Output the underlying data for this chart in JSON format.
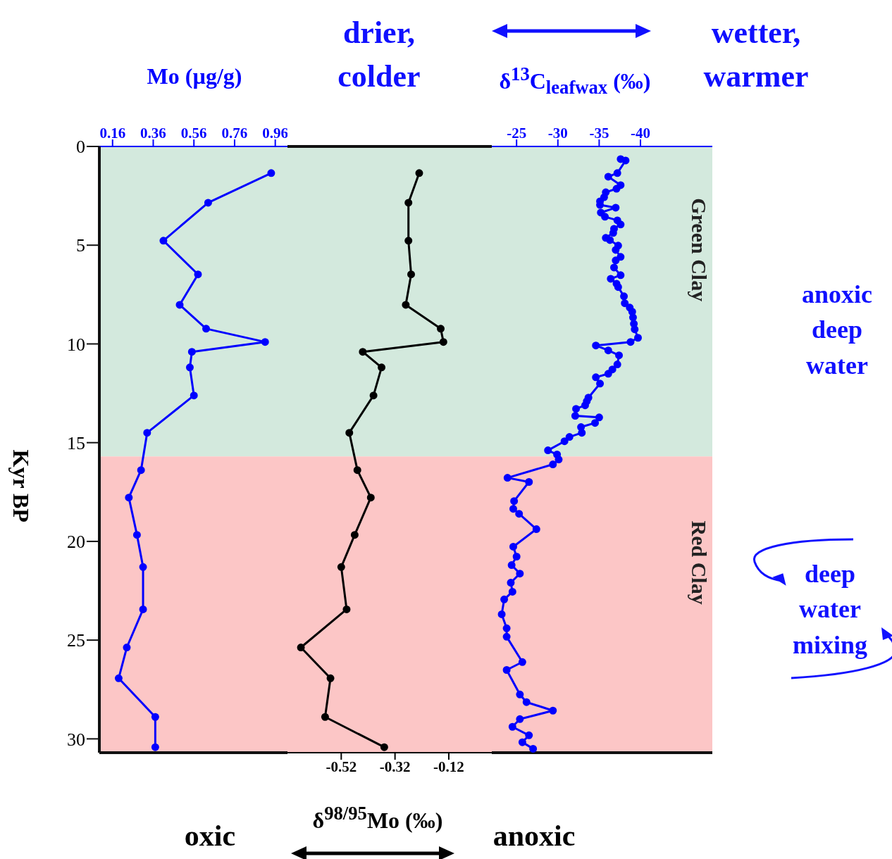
{
  "chart_data": [
    {
      "type": "line",
      "xlabel": "Mo (µg/g)",
      "ylabel": "Kyr BP",
      "xlim": [
        0.095,
        1.02
      ],
      "xticks": [
        0.16,
        0.36,
        0.56,
        0.76,
        0.96
      ],
      "ylim": [
        30.7,
        0
      ],
      "yticks": [
        0,
        5,
        10,
        15,
        20,
        25,
        30
      ],
      "marker": "circle",
      "line_style": "solid",
      "series": [
        {
          "color": "#0000ff",
          "x": [
            0.94,
            0.63,
            0.41,
            0.58,
            0.49,
            0.62,
            0.91,
            0.55,
            0.54,
            0.56,
            0.33,
            0.3,
            0.24,
            0.28,
            0.31,
            0.31,
            0.23,
            0.19,
            0.37,
            0.37
          ],
          "values": [
            1.35,
            2.85,
            4.77,
            6.48,
            8.02,
            9.23,
            9.9,
            10.4,
            11.19,
            12.61,
            14.5,
            16.39,
            17.78,
            19.67,
            21.3,
            23.44,
            25.37,
            26.93,
            28.89,
            30.42
          ]
        }
      ],
      "bands": [
        {
          "axis": "y",
          "from": 0,
          "to": 15.7,
          "color": "#d3e9dd"
        },
        {
          "axis": "y",
          "from": 15.7,
          "to": 30.7,
          "color": "#fcc6c6"
        }
      ]
    },
    {
      "type": "line",
      "xlabel": "δ$^{98/95}$Mo (‰)",
      "xlim": [
        -0.72,
        0.04
      ],
      "xticks": [
        -0.52,
        -0.32,
        -0.12
      ],
      "ylim": [
        30.7,
        0
      ],
      "tick_labels": "x",
      "marker": "circle",
      "line_style": "solid",
      "series": [
        {
          "color": "#000000",
          "x": [
            -0.23,
            -0.27,
            -0.27,
            -0.26,
            -0.28,
            -0.15,
            -0.14,
            -0.44,
            -0.37,
            -0.4,
            -0.49,
            -0.46,
            -0.41,
            -0.47,
            -0.52,
            -0.5,
            -0.67,
            -0.56,
            -0.58,
            -0.36
          ],
          "values": [
            1.35,
            2.85,
            4.77,
            6.48,
            8.02,
            9.23,
            9.9,
            10.4,
            11.19,
            12.61,
            14.5,
            16.39,
            17.78,
            19.67,
            21.3,
            23.44,
            25.37,
            26.93,
            28.89,
            30.42
          ]
        }
      ],
      "bands": [
        {
          "axis": "y",
          "from": 0,
          "to": 15.7,
          "color": "#d3e9dd"
        },
        {
          "axis": "y",
          "from": 15.7,
          "to": 30.7,
          "color": "#fcc6c6"
        }
      ],
      "annotations": [
        "oxic",
        "anoxic"
      ]
    },
    {
      "type": "line",
      "xlabel": "δ$^{13}$C$_{leafwax}$ (‰)",
      "xlim": [
        -22,
        -48.7
      ],
      "xticks": [
        -25,
        -30,
        -35,
        -40
      ],
      "ylim": [
        30.7,
        0
      ],
      "tick_labels": "x",
      "marker": "circle",
      "line_style": "solid",
      "series": [
        {
          "color": "#0000ff",
          "x": [
            -37.6,
            -38.2,
            -37.2,
            -36.1,
            -37.6,
            -37.1,
            -35.8,
            -35.6,
            -35.1,
            -35.1,
            -37.0,
            -35.2,
            -35.7,
            -37.2,
            -37.6,
            -36.8,
            -36.7,
            -35.8,
            -36.3,
            -37.3,
            -37.0,
            -37.6,
            -37.0,
            -36.8,
            -37.6,
            -36.4,
            -37.1,
            -37.3,
            -38.0,
            -38.1,
            -38.7,
            -39.0,
            -39.1,
            -39.2,
            -39.3,
            -39.7,
            -38.8,
            -34.6,
            -36.1,
            -37.4,
            -37.2,
            -36.6,
            -36.1,
            -34.6,
            -35.1,
            -33.7,
            -33.5,
            -33.3,
            -32.2,
            -32.1,
            -35.0,
            -34.5,
            -32.8,
            -32.9,
            -31.4,
            -30.8,
            -28.8,
            -29.9,
            -30.1,
            -29.4,
            -23.9,
            -26.5,
            -24.7,
            -24.6,
            -25.3,
            -27.4,
            -24.6,
            -25.0,
            -24.4,
            -25.4,
            -24.3,
            -24.5,
            -23.5,
            -23.2,
            -23.8,
            -23.8,
            -25.7,
            -23.8,
            -25.4,
            -26.2,
            -29.4,
            -25.4,
            -24.5,
            -26.5,
            -25.7,
            -27.0
          ],
          "values": [
            0.64,
            0.71,
            1.35,
            1.53,
            1.96,
            2.14,
            2.32,
            2.57,
            2.78,
            2.96,
            3.1,
            3.35,
            3.56,
            3.74,
            3.95,
            4.17,
            4.38,
            4.63,
            4.74,
            5.02,
            5.24,
            5.59,
            5.77,
            6.13,
            6.52,
            6.7,
            6.95,
            7.12,
            7.59,
            7.94,
            8.16,
            8.37,
            8.66,
            8.98,
            9.26,
            9.69,
            9.9,
            10.08,
            10.33,
            10.58,
            11.04,
            11.29,
            11.51,
            11.69,
            12.01,
            12.72,
            12.9,
            13.11,
            13.29,
            13.64,
            13.72,
            14.0,
            14.21,
            14.5,
            14.71,
            14.93,
            15.39,
            15.6,
            15.85,
            16.1,
            16.78,
            16.99,
            17.96,
            18.35,
            18.6,
            19.38,
            20.27,
            20.77,
            21.2,
            21.63,
            22.09,
            22.55,
            22.94,
            23.69,
            24.4,
            24.83,
            26.11,
            26.51,
            27.75,
            28.14,
            28.57,
            29.0,
            29.39,
            29.82,
            30.17,
            30.5
          ]
        }
      ],
      "bands": [
        {
          "axis": "y",
          "from": 0,
          "to": 15.7,
          "label": "Green Clay",
          "color": "#d3e9dd"
        },
        {
          "axis": "y",
          "from": 15.7,
          "to": 30.7,
          "label": "Red Clay",
          "color": "#fcc6c6"
        }
      ],
      "annotations": [
        "drier, colder",
        "wetter, warmer",
        "anoxic deep water",
        "deep water mixing"
      ]
    }
  ]
}
